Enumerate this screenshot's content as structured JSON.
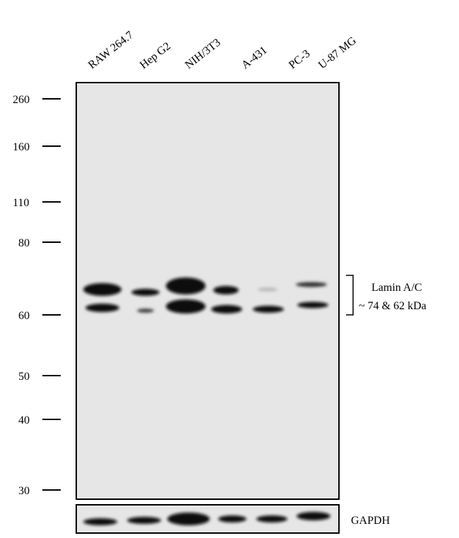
{
  "lanes": [
    "RAW 264.7",
    "Hep G2",
    "NIH/3T3",
    "A-431",
    "PC-3",
    "U-87 MG"
  ],
  "markers": [
    "260",
    "160",
    "110",
    "80",
    "60",
    "50",
    "40",
    "30"
  ],
  "annotation": {
    "protein": "Lamin A/C",
    "size": "~ 74 & 62 kDa"
  },
  "loading_control": "GAPDH"
}
